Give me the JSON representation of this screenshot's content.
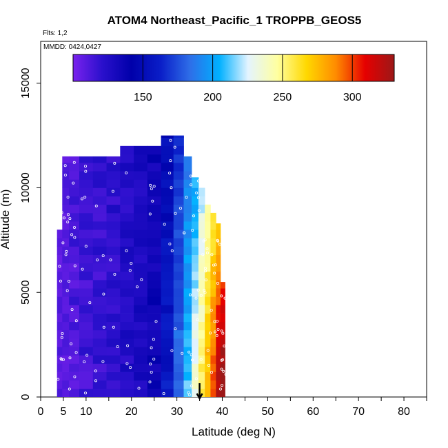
{
  "chart_data": {
    "type": "heatmap",
    "title": "ATOM4 Northeast_Pacific_1 TROPPB_GEOS5",
    "subtitle_flights": "Flts: 1,2",
    "subtitle_dates": "MMDD: 0424,0427",
    "xlabel": "Latitude (deg N)",
    "ylabel": "Altitude (m)",
    "xlim": [
      0,
      85
    ],
    "ylim": [
      0,
      17000
    ],
    "x_ticks": [
      0,
      5,
      10,
      20,
      30,
      40,
      50,
      60,
      70,
      80
    ],
    "x_minor_ticks": [
      15,
      25,
      35,
      45,
      55,
      65,
      75,
      85
    ],
    "y_ticks": [
      0,
      5000,
      10000,
      15000
    ],
    "colorbar": {
      "range": [
        100,
        330
      ],
      "ticks": [
        150,
        200,
        250,
        300
      ],
      "colors": [
        "#7a22ee",
        "#2a10cc",
        "#0000aa",
        "#0a1ec8",
        "#2e6ee8",
        "#00b0ff",
        "#e4f4ff",
        "#ffffa0",
        "#ffd800",
        "#ff8c00",
        "#e60000",
        "#9c1818"
      ]
    },
    "columns": [
      {
        "lat": 4.0,
        "alt_max": 8000
      },
      {
        "lat": 5.5,
        "alt_max": 11500
      },
      {
        "lat": 7.0,
        "alt_max": 11500
      },
      {
        "lat": 10.0,
        "alt_max": 11500
      },
      {
        "lat": 13.0,
        "alt_max": 11500
      },
      {
        "lat": 16.0,
        "alt_max": 11500
      },
      {
        "lat": 19.0,
        "alt_max": 12000
      },
      {
        "lat": 22.0,
        "alt_max": 12000
      },
      {
        "lat": 25.0,
        "alt_max": 12000
      },
      {
        "lat": 28.0,
        "alt_max": 12500
      },
      {
        "lat": 30.5,
        "alt_max": 12500
      },
      {
        "lat": 32.5,
        "alt_max": 11500
      },
      {
        "lat": 34.0,
        "alt_max": 10500
      },
      {
        "lat": 35.5,
        "alt_max": 10000
      },
      {
        "lat": 36.8,
        "alt_max": 9200
      },
      {
        "lat": 38.0,
        "alt_max": 8800
      },
      {
        "lat": 39.2,
        "alt_max": 8300
      },
      {
        "lat": 40.0,
        "alt_max": 5500
      }
    ],
    "tropopause_marker_lat": 35.0
  }
}
